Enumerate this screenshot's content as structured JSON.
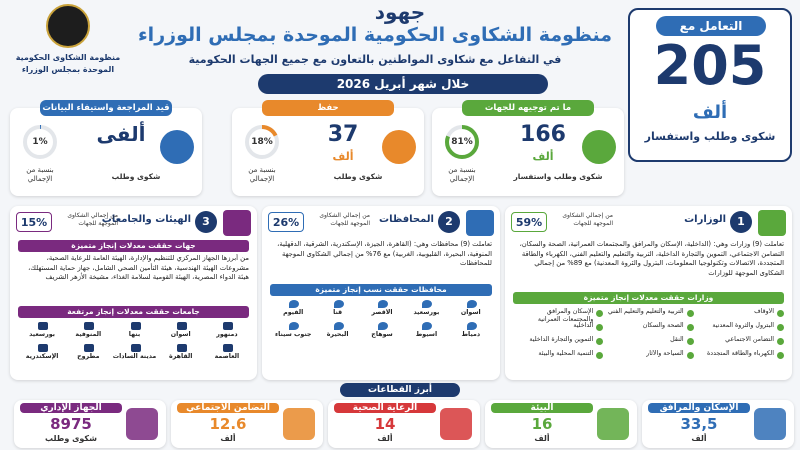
{
  "logo": {
    "text": "منظومة الشكاوى الحكومية الموحدة بمجلس الوزراء"
  },
  "header": {
    "kicker": "جهود",
    "title": "منظومة الشكاوى الحكومية الموحدة بمجلس الوزراء",
    "subtitle": "في التفاعل مع شكاوى المواطنين بالتعاون مع جميع الجهات الحكومية",
    "period": "خلال شهر أبريل 2026"
  },
  "total": {
    "label": "التعامل مع",
    "value": "205",
    "unit": "ألف",
    "caption": "شكوى وطلب واستفسار"
  },
  "status_cards": [
    {
      "title": "ما تم توجيهه للجهات",
      "value": "166",
      "unit": "ألف",
      "caption": "شكوى وطلب واستفسار",
      "share": {
        "value": 81,
        "label": "81%"
      },
      "share_caption": "بنسبة من الإجمالي"
    },
    {
      "title": "حفظ",
      "value": "37",
      "unit": "ألف",
      "caption": "شكوى وطلب",
      "share": {
        "value": 18,
        "label": "18%"
      },
      "share_caption": "بنسبة من الإجمالي"
    },
    {
      "title": "قيد المراجعة واستيفاء البيانات",
      "value": "ألفى",
      "caption": "شكوى وطلب",
      "share": {
        "value": 1,
        "label": "1%"
      },
      "share_caption": "بنسبة من الإجمالي"
    }
  ],
  "sections": [
    {
      "number": "1",
      "title": "الوزارات",
      "share": {
        "value": 59,
        "label": "59%"
      },
      "share_caption": "من إجمالي الشكاوى الموجهة للجهات",
      "text": "تعاملت (9) وزارات وهي: (الداخلية، الإسكان والمرافق والمجتمعات العمرانية، الصحة والسكان، التضامن الاجتماعي، التموين والتجارة الداخلية، التربية والتعليم والتعليم الفني، الكهرباء والطاقة المتجددة، الاتصالات وتكنولوجيا المعلومات، البترول والثروة المعدنية) مع 89% من إجمالي الشكاوى الموجهة للوزارات",
      "subtitle": "وزارات حققت معدلات إنجاز متميزة",
      "items": [
        "الأوقاف",
        "التربية والتعليم والتعليم الفني",
        "الإسكان والمرافق والمجتمعات العمرانية",
        "البترول والثروة المعدنية",
        "الصحة والسكان",
        "الداخلية",
        "التضامن الاجتماعي",
        "النقل",
        "التموين والتجارة الداخلية",
        "الكهرباء والطاقة المتجددة",
        "السياحة والآثار",
        "التنمية المحلية والبيئة"
      ]
    },
    {
      "number": "2",
      "title": "المحافظات",
      "share": {
        "value": 26,
        "label": "26%"
      },
      "share_caption": "من إجمالي الشكاوى الموجهة للجهات",
      "text": "تعاملت (9) محافظات وهي: (القاهرة، الجيزة، الإسكندرية، الشرقية، الدقهلية، المنوفية، البحيرة، القليوبية، الغربية) مع 76% من إجمالي الشكاوى الموجهة للمحافظات",
      "subtitle": "محافظات حققت نسب إنجاز متميزة",
      "items": [
        "أسوان",
        "بورسعيد",
        "الأقصر",
        "قنا",
        "الفيوم",
        "دمياط",
        "أسيوط",
        "سوهاج",
        "البحيرة",
        "جنوب سيناء"
      ]
    },
    {
      "number": "3",
      "title": "الهيئات والجامعات",
      "share": {
        "value": 15,
        "label": "15%"
      },
      "share_caption": "من إجمالي الشكاوى الموجهة للجهات",
      "subtitle": "جهات حققت معدلات إنجاز متميزة",
      "text": "من أبرزها الجهاز المركزي للتنظيم والإدارة، الهيئة العامة للرعاية الصحية، مشروعات الهيئة الهندسية، هيئة التأمين الصحي الشامل، جهاز حماية المستهلك، هيئة الدواء المصرية، الهيئة القومية لسلامة الغذاء، مشيخة الأزهر الشريف",
      "universities_title": "جامعات حققت معدلات إنجاز مرتفعة",
      "items": [
        "دمنهور",
        "أسوان",
        "بنها",
        "المنوفية",
        "بورسعيد",
        "العاصمة",
        "القاهرة",
        "مدينة السادات",
        "مطروح",
        "الإسكندرية"
      ]
    }
  ],
  "sectors_title": "أبرز القطاعات",
  "sectors": [
    {
      "title": "الإسكان والمرافق",
      "value": "33,5",
      "unit": "ألف"
    },
    {
      "title": "البيئة",
      "value": "16",
      "unit": "ألف"
    },
    {
      "title": "الرعاية الصحية",
      "value": "14",
      "unit": "ألف"
    },
    {
      "title": "التضامن الاجتماعي",
      "value": "12.6",
      "unit": "ألف"
    },
    {
      "title": "الجهاز الإداري",
      "value": "8975",
      "unit": "شكوى وطلب"
    }
  ]
}
